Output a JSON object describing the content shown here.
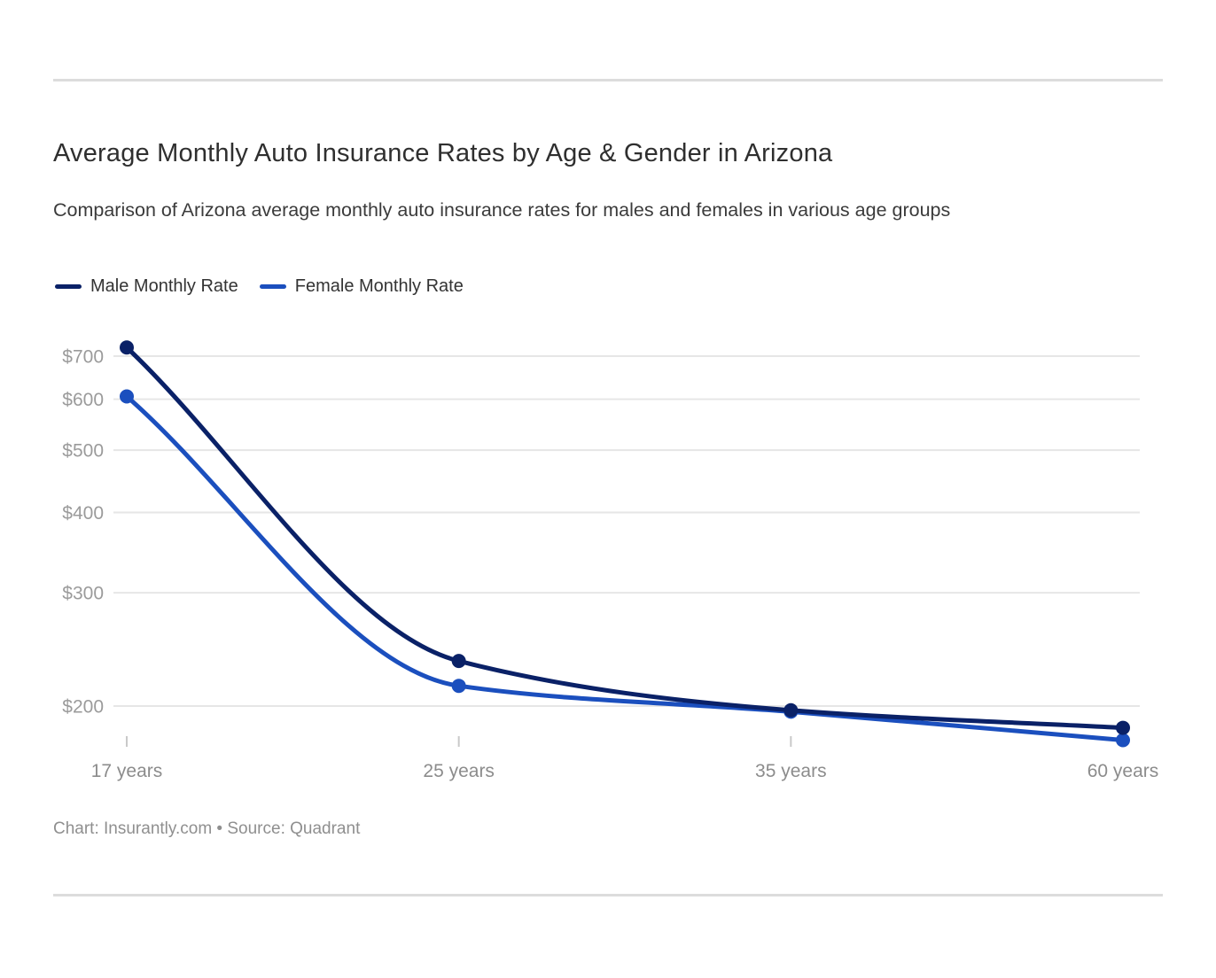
{
  "header": {
    "title": "Average Monthly Auto Insurance Rates by Age & Gender in Arizona",
    "subtitle": "Comparison of Arizona average monthly auto insurance rates for males and females in various age groups"
  },
  "legend": {
    "items": [
      {
        "label": "Male Monthly Rate",
        "color": "#0a2167"
      },
      {
        "label": "Female Monthly Rate",
        "color": "#1b4fbe"
      }
    ]
  },
  "chart_data": {
    "type": "line",
    "title": "Average Monthly Auto Insurance Rates by Age & Gender in Arizona",
    "subtitle": "Comparison of Arizona average monthly auto insurance rates for males and females in various age groups",
    "categories": [
      "17 years",
      "25 years",
      "35 years",
      "60 years"
    ],
    "series": [
      {
        "name": "Male Monthly Rate",
        "color": "#0a2167",
        "values": [
          722,
          235,
          197,
          185
        ]
      },
      {
        "name": "Female Monthly Rate",
        "color": "#1b4fbe",
        "values": [
          606,
          215,
          196,
          177
        ]
      }
    ],
    "y_axis": {
      "scale": "log",
      "ticks": [
        200,
        300,
        400,
        500,
        600,
        700
      ],
      "tick_prefix": "$",
      "range": [
        170,
        740
      ]
    },
    "x_axis": {
      "labels": [
        "17 years",
        "25 years",
        "35 years",
        "60 years"
      ]
    },
    "grid": "horizontal",
    "legend_position": "top-left",
    "grid_color": "#e6e6e6",
    "tick_color": "#c9c9c9"
  },
  "footer": {
    "text": "Chart: Insurantly.com • Source: Quadrant"
  }
}
